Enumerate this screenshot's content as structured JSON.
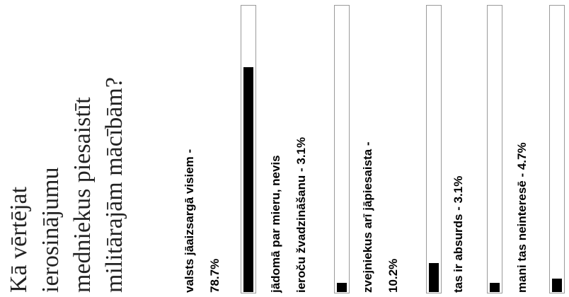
{
  "poll": {
    "question": "Kā vērtējat\nierosinājumu\nmedniekus piesaistīt\nmilitārajām mācībām?",
    "options": [
      {
        "label": "valsts jāaizsargā visiem -\n78.7%",
        "value": 78.7
      },
      {
        "label": "jādomā par mieru, nevis\nieroču žvadzināšanu - 3.1%",
        "value": 3.1
      },
      {
        "label": "zvejniekus arī jāpiesaista -\n10.2%",
        "value": 10.2
      },
      {
        "label": "tas ir absurds - 3.1%",
        "value": 3.1
      },
      {
        "label": "mani tas neinteresē - 4.7%",
        "value": 4.7
      }
    ]
  }
}
